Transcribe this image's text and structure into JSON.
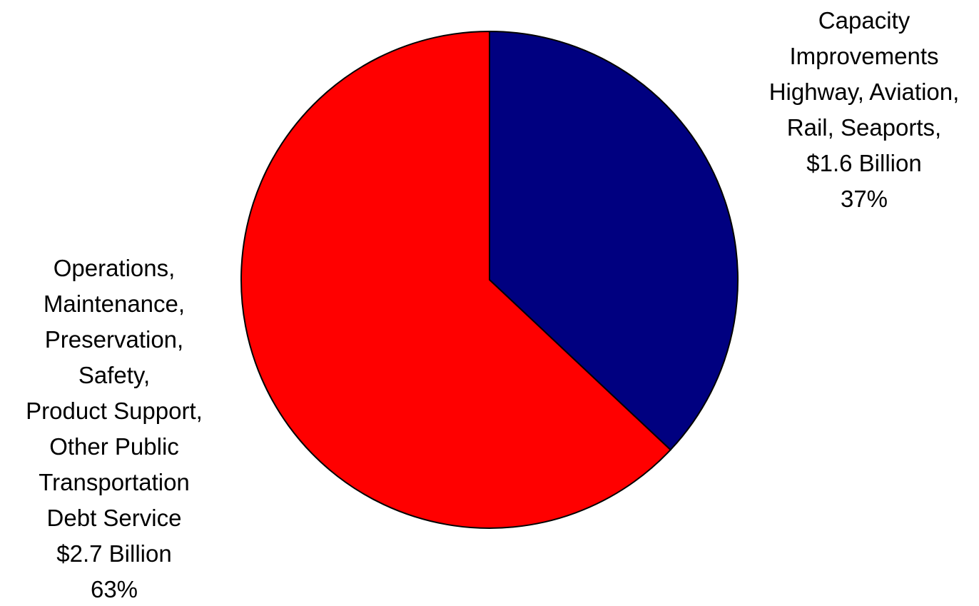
{
  "chart_data": {
    "type": "pie",
    "title": "",
    "start_angle_deg": 0,
    "direction": "clockwise",
    "slices": [
      {
        "category": "Capacity Improvements Highway, Aviation, Rail, Seaports",
        "value_billion": 1.6,
        "percent": 37,
        "color": "#000080",
        "label_lines": [
          "Capacity",
          "Improvements",
          "Highway, Aviation,",
          "Rail, Seaports,",
          "$1.6 Billion",
          "37%"
        ]
      },
      {
        "category": "Operations, Maintenance, Preservation, Safety, Product Support, Other Public Transportation Debt Service",
        "value_billion": 2.7,
        "percent": 63,
        "color": "#ff0000",
        "label_lines": [
          "Operations,",
          "Maintenance,",
          "Preservation,",
          "Safety,",
          "Product Support,",
          "Other Public",
          "Transportation",
          "Debt Service",
          "$2.7 Billion",
          "63%"
        ]
      }
    ]
  }
}
